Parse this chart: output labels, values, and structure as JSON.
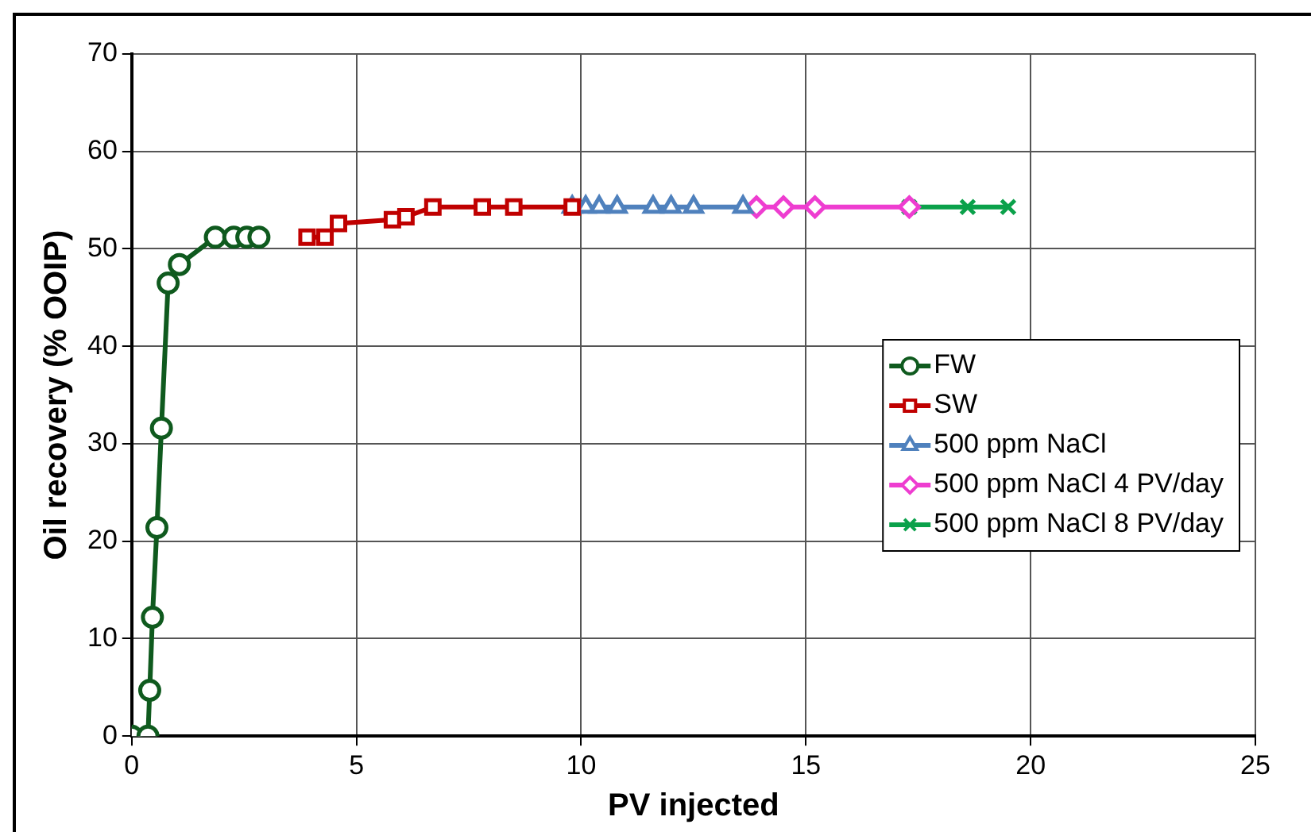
{
  "chart_data": {
    "type": "line",
    "xlabel": "PV injected",
    "ylabel": "Oil recovery (% OOIP)",
    "xlim": [
      0,
      25
    ],
    "xticks": [
      0,
      5,
      10,
      15,
      20,
      25
    ],
    "ylim": [
      0,
      70
    ],
    "yticks": [
      0,
      10,
      20,
      30,
      40,
      50,
      60,
      70
    ],
    "grid": true,
    "legend": "right",
    "line_style": "solid",
    "series": [
      {
        "name": "FW",
        "color": "#0f5a1e",
        "marker": "circle",
        "x": [
          0,
          0.36,
          0.4,
          0.46,
          0.56,
          0.66,
          0.81,
          1.06,
          1.86,
          2.27,
          2.56,
          2.83
        ],
        "values": [
          0,
          0,
          4.7,
          12.2,
          21.4,
          31.6,
          46.5,
          48.4,
          51.2,
          51.2,
          51.2,
          51.2
        ]
      },
      {
        "name": "SW",
        "color": "#c00000",
        "marker": "square",
        "x": [
          3.9,
          4.3,
          4.6,
          5.8,
          6.1,
          6.7,
          7.8,
          8.5,
          9.8
        ],
        "values": [
          51.2,
          51.2,
          52.6,
          53.0,
          53.3,
          54.3,
          54.3,
          54.3,
          54.3
        ]
      },
      {
        "name": "500 ppm NaCl",
        "color": "#4f81bd",
        "marker": "triangle",
        "x": [
          9.8,
          10.1,
          10.4,
          10.8,
          11.6,
          12.0,
          12.5,
          13.6
        ],
        "values": [
          54.3,
          54.3,
          54.3,
          54.3,
          54.3,
          54.3,
          54.3,
          54.3
        ]
      },
      {
        "name": "500 ppm NaCl 4 PV/day",
        "color": "#ee3dd0",
        "marker": "diamond",
        "x": [
          13.9,
          14.5,
          15.2,
          17.3
        ],
        "values": [
          54.3,
          54.3,
          54.3,
          54.3
        ]
      },
      {
        "name": "500 ppm NaCl 8 PV/day",
        "color": "#0aa14a",
        "marker": "cross",
        "x": [
          17.3,
          18.6,
          19.5
        ],
        "values": [
          54.3,
          54.3,
          54.3
        ]
      }
    ]
  }
}
